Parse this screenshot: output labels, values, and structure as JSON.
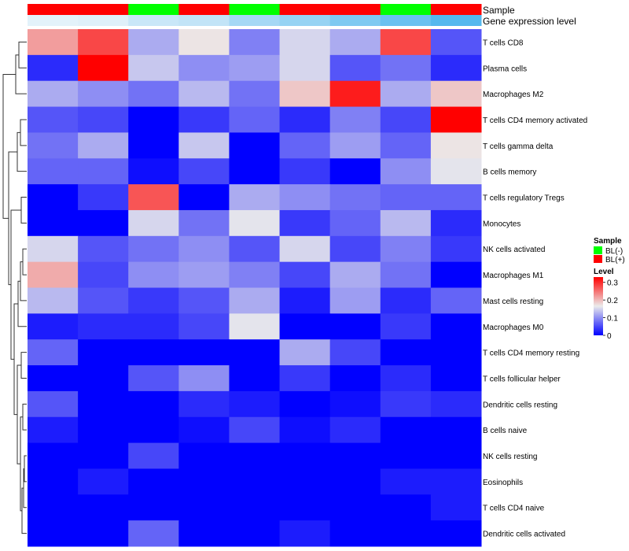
{
  "chart_data": {
    "type": "heatmap",
    "annotation_rows": [
      {
        "label": "Sample",
        "values": [
          "BL(+)",
          "BL(+)",
          "BL(-)",
          "BL(+)",
          "BL(-)",
          "BL(+)",
          "BL(+)",
          "BL(-)",
          "BL(+)"
        ]
      },
      {
        "label": "Gene expression level",
        "values": [
          0.02,
          0.05,
          0.2,
          0.25,
          0.45,
          0.55,
          0.72,
          0.85,
          1.0
        ]
      }
    ],
    "rows": [
      "T cells CD8",
      "Plasma cells",
      "Macrophages M2",
      "T cells CD4 memory activated",
      "T cells gamma delta",
      "B cells memory",
      "T cells regulatory  Tregs",
      "Monocytes",
      "NK cells activated",
      "Macrophages M1",
      "Mast cells resting",
      "Macrophages M0",
      "T cells CD4 memory resting",
      "T cells follicular helper",
      "Dendritic cells resting",
      "B cells naive",
      "NK cells resting",
      "Eosinophils",
      "T cells CD4 naive",
      "Dendritic cells activated"
    ],
    "values": [
      [
        0.22,
        0.28,
        0.12,
        0.17,
        0.09,
        0.15,
        0.12,
        0.28,
        0.06
      ],
      [
        0.03,
        0.33,
        0.14,
        0.1,
        0.11,
        0.15,
        0.06,
        0.08,
        0.03
      ],
      [
        0.12,
        0.1,
        0.08,
        0.13,
        0.08,
        0.19,
        0.31,
        0.12,
        0.19
      ],
      [
        0.06,
        0.05,
        0.0,
        0.04,
        0.07,
        0.03,
        0.09,
        0.05,
        0.33
      ],
      [
        0.08,
        0.12,
        0.0,
        0.14,
        0.0,
        0.07,
        0.11,
        0.07,
        0.17
      ],
      [
        0.07,
        0.07,
        0.01,
        0.05,
        0.0,
        0.04,
        0.0,
        0.1,
        0.16
      ],
      [
        0.0,
        0.04,
        0.27,
        0.0,
        0.12,
        0.1,
        0.08,
        0.07,
        0.07
      ],
      [
        0.0,
        0.0,
        0.15,
        0.08,
        0.16,
        0.04,
        0.07,
        0.13,
        0.03
      ],
      [
        0.15,
        0.06,
        0.08,
        0.1,
        0.06,
        0.15,
        0.05,
        0.09,
        0.04
      ],
      [
        0.21,
        0.05,
        0.1,
        0.11,
        0.09,
        0.05,
        0.12,
        0.08,
        0.0
      ],
      [
        0.13,
        0.06,
        0.04,
        0.06,
        0.12,
        0.02,
        0.11,
        0.03,
        0.07
      ],
      [
        0.02,
        0.03,
        0.03,
        0.05,
        0.16,
        0.0,
        0.0,
        0.04,
        0.0
      ],
      [
        0.07,
        0.0,
        0.0,
        0.0,
        0.0,
        0.12,
        0.05,
        0.0,
        0.0
      ],
      [
        0.0,
        0.0,
        0.06,
        0.1,
        0.0,
        0.04,
        0.0,
        0.03,
        0.0
      ],
      [
        0.06,
        0.0,
        0.0,
        0.03,
        0.02,
        0.0,
        0.01,
        0.04,
        0.03
      ],
      [
        0.02,
        0.0,
        0.0,
        0.01,
        0.05,
        0.01,
        0.03,
        0.0,
        0.0
      ],
      [
        0.0,
        0.0,
        0.05,
        0.0,
        0.0,
        0.0,
        0.0,
        0.0,
        0.0
      ],
      [
        0.0,
        0.02,
        0.0,
        0.0,
        0.0,
        0.0,
        0.0,
        0.02,
        0.02
      ],
      [
        0.0,
        0.0,
        0.0,
        0.0,
        0.0,
        0.0,
        0.0,
        0.0,
        0.02
      ],
      [
        0.0,
        0.0,
        0.07,
        0.0,
        0.0,
        0.02,
        0.0,
        0.0,
        0.0
      ]
    ],
    "value_range": [
      0,
      0.33
    ],
    "colors": {
      "low": "#0000ff",
      "mid": "#ebebeb",
      "high": "#ff0000",
      "sample_bl_minus": "#00ff00",
      "sample_bl_plus": "#ff0000",
      "expr_low": "#e6f3fa",
      "expr_high": "#55b8ee"
    },
    "legend": {
      "sample_title": "Sample",
      "sample_items": [
        {
          "label": "BL(-)",
          "color": "#00ff00"
        },
        {
          "label": "BL(+)",
          "color": "#ff0000"
        }
      ],
      "level_title": "Level",
      "level_ticks": [
        {
          "label": "0.3",
          "value": 0.3
        },
        {
          "label": "0.2",
          "value": 0.2
        },
        {
          "label": "0.1",
          "value": 0.1
        },
        {
          "label": "0",
          "value": 0
        }
      ],
      "placement": "right"
    },
    "row_dendrogram": "left"
  }
}
